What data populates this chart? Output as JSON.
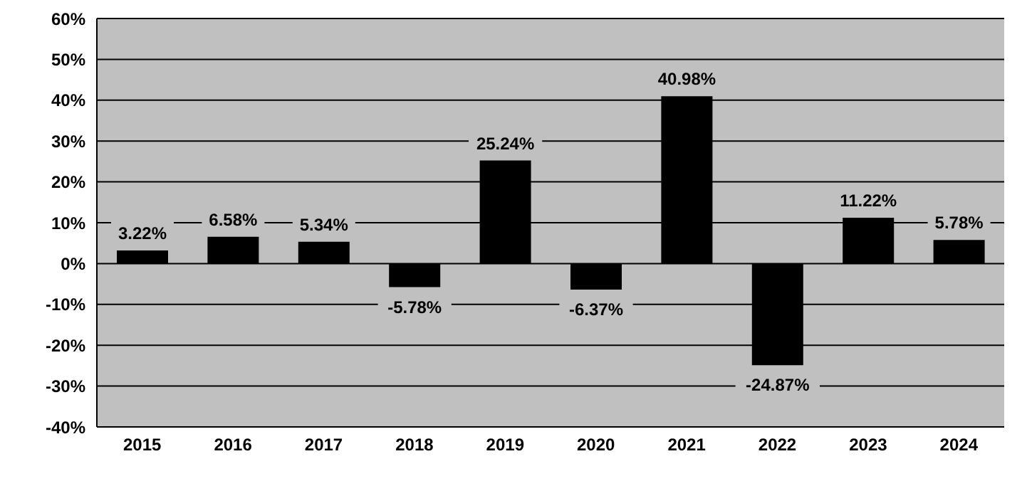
{
  "chart_data": {
    "type": "bar",
    "categories": [
      "2015",
      "2016",
      "2017",
      "2018",
      "2019",
      "2020",
      "2021",
      "2022",
      "2023",
      "2024"
    ],
    "values": [
      3.22,
      6.58,
      5.34,
      -5.78,
      25.24,
      -6.37,
      40.98,
      -24.87,
      11.22,
      5.78
    ],
    "value_labels": [
      "3.22%",
      "6.58%",
      "5.34%",
      "-5.78%",
      "25.24%",
      "-6.37%",
      "40.98%",
      "-24.87%",
      "11.22%",
      "5.78%"
    ],
    "color": "#000000",
    "ylim": [
      -40,
      60
    ],
    "yticks": [
      {
        "value": -40,
        "label": "-40%"
      },
      {
        "value": -30,
        "label": "-30%"
      },
      {
        "value": -20,
        "label": "-20%"
      },
      {
        "value": -10,
        "label": "-10%"
      },
      {
        "value": 0,
        "label": "0%"
      },
      {
        "value": 10,
        "label": "10%"
      },
      {
        "value": 20,
        "label": "20%"
      },
      {
        "value": 30,
        "label": "30%"
      },
      {
        "value": 40,
        "label": "40%"
      },
      {
        "value": 50,
        "label": "50%"
      },
      {
        "value": 60,
        "label": "60%"
      }
    ],
    "grid": "y"
  }
}
